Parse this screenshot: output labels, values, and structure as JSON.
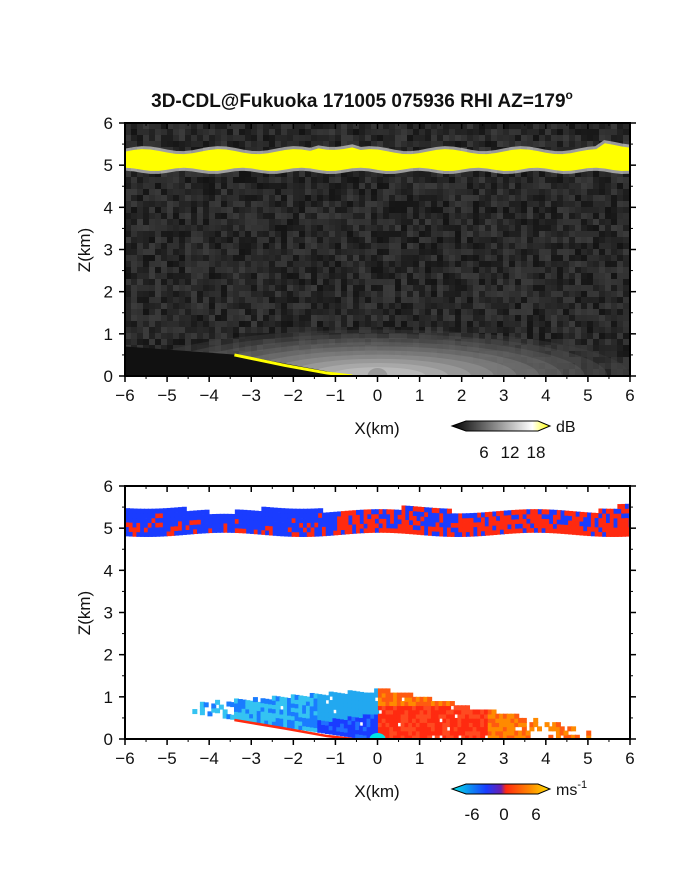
{
  "figure": {
    "title": "3D-CDL@Fukuoka 171005 075936 RHI AZ=179",
    "title_superscript": "o"
  },
  "chart_data": [
    {
      "type": "heatmap",
      "panel": "top",
      "quantity": "backscatter intensity",
      "xlabel": "X(km)",
      "ylabel": "Z(km)",
      "xlim": [
        -6,
        6
      ],
      "ylim": [
        0,
        6
      ],
      "xticks": [
        "-6",
        "-5",
        "-4",
        "-3",
        "-2",
        "-1",
        "0",
        "1",
        "2",
        "3",
        "4",
        "5",
        "6"
      ],
      "yticks": [
        "0",
        "1",
        "2",
        "3",
        "4",
        "5",
        "6"
      ],
      "colorbar": {
        "unit": "dB",
        "ticks": [
          "6",
          "12",
          "18"
        ],
        "range": [
          0,
          21
        ],
        "colors": [
          "#000000",
          "#ffffff",
          "#ffff00"
        ]
      },
      "features": {
        "cloud_layer_base_km": 4.9,
        "cloud_layer_top_km": 5.4,
        "cloud_layer_color": "#ffff00",
        "boundary_layer_top_km": 1.1,
        "low_edge_x_km": [
          -3.3,
          -0.6
        ]
      }
    },
    {
      "type": "heatmap",
      "panel": "bottom",
      "quantity": "radial velocity",
      "xlabel": "X(km)",
      "ylabel": "Z(km)",
      "xlim": [
        -6,
        6
      ],
      "ylim": [
        0,
        6
      ],
      "xticks": [
        "-6",
        "-5",
        "-4",
        "-3",
        "-2",
        "-1",
        "0",
        "1",
        "2",
        "3",
        "4",
        "5",
        "6"
      ],
      "yticks": [
        "0",
        "1",
        "2",
        "3",
        "4",
        "5",
        "6"
      ],
      "colorbar": {
        "unit": "ms",
        "unit_superscript": "-1",
        "ticks": [
          "-6",
          "0",
          "6"
        ],
        "range": [
          -8,
          8
        ],
        "colors": [
          "#00e5e5",
          "#1a3cff",
          "#ff2a10",
          "#ffe000"
        ]
      },
      "features": {
        "cloud_layer_base_km": 4.85,
        "cloud_layer_top_km": 5.5,
        "negative_velocity_color": "#1a3cff",
        "positive_velocity_color": "#ff2a10",
        "near_field_x_km": [
          -4.4,
          5.0
        ],
        "near_field_top_km": 1.15
      }
    }
  ]
}
